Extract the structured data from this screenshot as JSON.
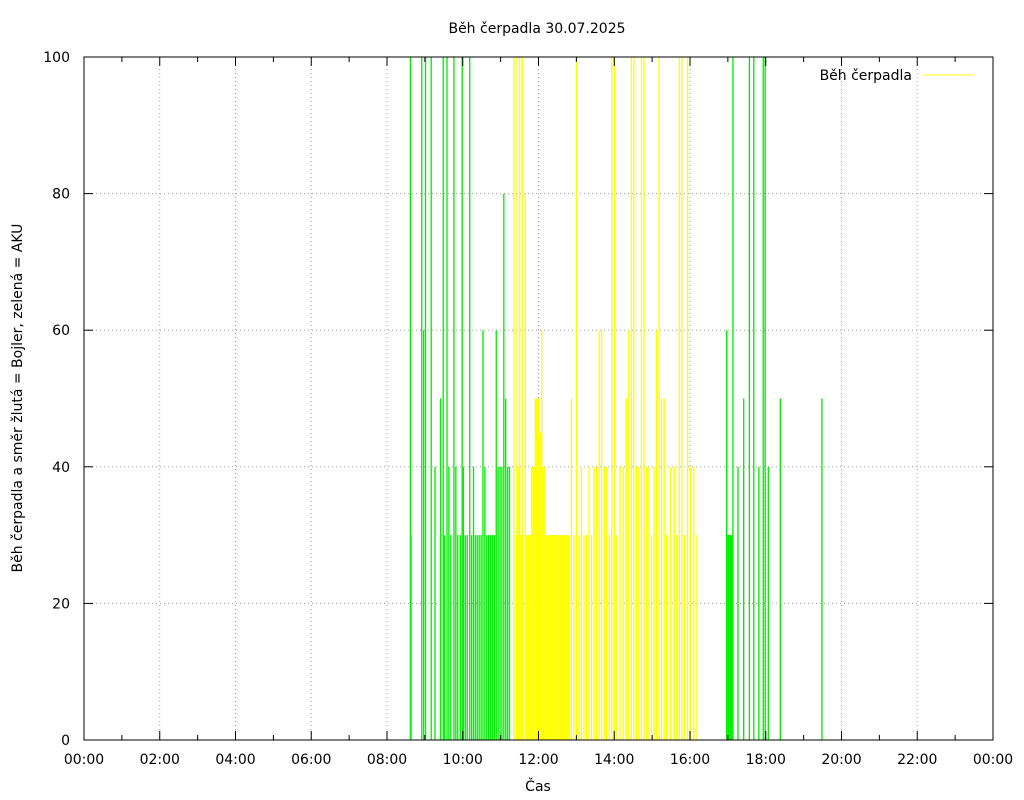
{
  "chart_data": {
    "type": "bar",
    "title": "Běh čerpadla 30.07.2025",
    "xlabel": "Čas",
    "ylabel": "Běh čerpadla a směr žlutá = Bojler, zelená = AKU",
    "xlim": [
      "00:00",
      "24:00"
    ],
    "ylim": [
      0,
      100
    ],
    "x_ticks": [
      "00:00",
      "02:00",
      "04:00",
      "06:00",
      "08:00",
      "10:00",
      "12:00",
      "14:00",
      "16:00",
      "18:00",
      "20:00",
      "22:00",
      "00:00"
    ],
    "y_ticks": [
      "0",
      "20",
      "40",
      "60",
      "80",
      "100"
    ],
    "grid": true,
    "legend": {
      "position": "top-right",
      "entries": [
        {
          "label": "Běh čerpadla",
          "color": "#ffff00"
        }
      ]
    },
    "series": [
      {
        "color": "#00ee00",
        "direction": "AKU",
        "points": [
          [
            "08:36",
            100
          ],
          [
            "08:37",
            30
          ],
          [
            "08:54",
            100
          ],
          [
            "08:57",
            60
          ],
          [
            "09:00",
            100
          ],
          [
            "09:09",
            100
          ],
          [
            "09:15",
            40
          ],
          [
            "09:24",
            50
          ],
          [
            "09:28",
            100
          ],
          [
            "09:30",
            30
          ],
          [
            "09:34",
            100
          ],
          [
            "09:37",
            40
          ],
          [
            "09:40",
            30
          ],
          [
            "09:45",
            100
          ],
          [
            "09:48",
            40
          ],
          [
            "09:51",
            30
          ],
          [
            "09:55",
            30
          ],
          [
            "09:58",
            100
          ],
          [
            "10:00",
            40
          ],
          [
            "10:03",
            30
          ],
          [
            "10:06",
            30
          ],
          [
            "10:10",
            100
          ],
          [
            "10:13",
            30
          ],
          [
            "10:16",
            40
          ],
          [
            "10:19",
            30
          ],
          [
            "10:22",
            30
          ],
          [
            "10:25",
            30
          ],
          [
            "10:28",
            30
          ],
          [
            "10:31",
            60
          ],
          [
            "10:34",
            40
          ],
          [
            "10:37",
            30
          ],
          [
            "10:40",
            30
          ],
          [
            "10:43",
            30
          ],
          [
            "10:46",
            30
          ],
          [
            "10:49",
            30
          ],
          [
            "10:52",
            60
          ],
          [
            "10:55",
            40
          ],
          [
            "10:58",
            40
          ],
          [
            "11:01",
            40
          ],
          [
            "11:04",
            80
          ],
          [
            "11:07",
            50
          ],
          [
            "11:10",
            40
          ],
          [
            "11:13",
            40
          ],
          [
            "16:57",
            60
          ],
          [
            "16:59",
            30
          ],
          [
            "17:01",
            30
          ],
          [
            "17:03",
            30
          ],
          [
            "17:05",
            30
          ],
          [
            "17:07",
            100
          ],
          [
            "17:15",
            40
          ],
          [
            "17:24",
            50
          ],
          [
            "17:33",
            100
          ],
          [
            "17:40",
            100
          ],
          [
            "17:48",
            40
          ],
          [
            "17:55",
            100
          ],
          [
            "17:58",
            100
          ],
          [
            "18:03",
            40
          ],
          [
            "18:22",
            50
          ],
          [
            "19:28",
            50
          ]
        ]
      },
      {
        "color": "#ffff00",
        "direction": "Bojler",
        "points": [
          [
            "11:20",
            100
          ],
          [
            "11:23",
            30
          ],
          [
            "11:25",
            100
          ],
          [
            "11:27",
            40
          ],
          [
            "11:29",
            100
          ],
          [
            "11:31",
            30
          ],
          [
            "11:33",
            100
          ],
          [
            "11:35",
            30
          ],
          [
            "11:38",
            80
          ],
          [
            "11:40",
            30
          ],
          [
            "11:42",
            30
          ],
          [
            "11:44",
            30
          ],
          [
            "11:46",
            30
          ],
          [
            "11:48",
            40
          ],
          [
            "11:50",
            40
          ],
          [
            "11:52",
            40
          ],
          [
            "11:54",
            50
          ],
          [
            "11:56",
            50
          ],
          [
            "11:58",
            50
          ],
          [
            "12:00",
            50
          ],
          [
            "12:02",
            45
          ],
          [
            "12:04",
            60
          ],
          [
            "12:06",
            40
          ],
          [
            "12:08",
            40
          ],
          [
            "12:10",
            30
          ],
          [
            "12:12",
            30
          ],
          [
            "12:14",
            30
          ],
          [
            "12:16",
            30
          ],
          [
            "12:18",
            30
          ],
          [
            "12:20",
            30
          ],
          [
            "12:22",
            30
          ],
          [
            "12:24",
            30
          ],
          [
            "12:26",
            30
          ],
          [
            "12:28",
            30
          ],
          [
            "12:30",
            30
          ],
          [
            "12:32",
            30
          ],
          [
            "12:34",
            30
          ],
          [
            "12:36",
            30
          ],
          [
            "12:38",
            30
          ],
          [
            "12:40",
            30
          ],
          [
            "12:42",
            30
          ],
          [
            "12:44",
            30
          ],
          [
            "12:46",
            30
          ],
          [
            "12:48",
            30
          ],
          [
            "12:51",
            50
          ],
          [
            "12:55",
            30
          ],
          [
            "12:59",
            100
          ],
          [
            "13:03",
            30
          ],
          [
            "13:07",
            40
          ],
          [
            "13:11",
            30
          ],
          [
            "13:15",
            30
          ],
          [
            "13:19",
            40
          ],
          [
            "13:23",
            30
          ],
          [
            "13:27",
            40
          ],
          [
            "13:31",
            40
          ],
          [
            "13:35",
            60
          ],
          [
            "13:39",
            60
          ],
          [
            "13:43",
            40
          ],
          [
            "13:47",
            40
          ],
          [
            "13:51",
            30
          ],
          [
            "13:55",
            100
          ],
          [
            "13:59",
            100
          ],
          [
            "14:03",
            30
          ],
          [
            "14:08",
            40
          ],
          [
            "14:13",
            40
          ],
          [
            "14:18",
            50
          ],
          [
            "14:22",
            60
          ],
          [
            "14:26",
            100
          ],
          [
            "14:30",
            100
          ],
          [
            "14:34",
            40
          ],
          [
            "14:38",
            40
          ],
          [
            "14:42",
            100
          ],
          [
            "14:46",
            100
          ],
          [
            "14:50",
            40
          ],
          [
            "14:54",
            40
          ],
          [
            "14:58",
            30
          ],
          [
            "15:02",
            40
          ],
          [
            "15:06",
            60
          ],
          [
            "15:10",
            100
          ],
          [
            "15:14",
            50
          ],
          [
            "15:18",
            50
          ],
          [
            "15:22",
            30
          ],
          [
            "15:28",
            40
          ],
          [
            "15:34",
            40
          ],
          [
            "15:38",
            30
          ],
          [
            "15:42",
            100
          ],
          [
            "15:46",
            100
          ],
          [
            "15:50",
            30
          ],
          [
            "15:55",
            100
          ],
          [
            "16:00",
            40
          ],
          [
            "16:05",
            40
          ],
          [
            "16:10",
            30
          ]
        ]
      }
    ]
  }
}
